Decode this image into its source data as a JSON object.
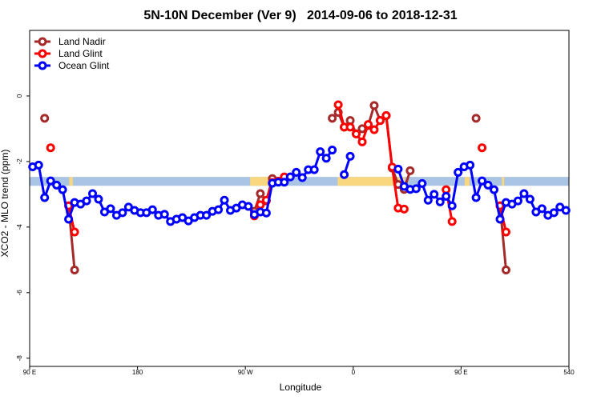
{
  "chart_data": {
    "type": "line",
    "title": "5N-10N December (Ver 9)   2014-09-06 to 2018-12-31",
    "xlabel": "Longitude",
    "ylabel": "XCO2 - MLO trend (ppm)",
    "xlim": [
      90,
      540
    ],
    "xticks": [
      {
        "value": 90,
        "label": "90 E"
      },
      180,
      {
        "value": 270,
        "label": "90 W"
      },
      {
        "value": 360,
        "label": "0"
      },
      {
        "value": 450,
        "label": "90 E"
      },
      540
    ],
    "ylim": [
      -8.25,
      2
    ],
    "yticks": [
      0,
      -2,
      -4,
      -6,
      -8
    ],
    "legend": "top-left",
    "band": {
      "ymin": -2.74,
      "ymax": -2.47,
      "color": "#a9c4e4"
    },
    "land_patches": {
      "color": "#f9d77e",
      "ranges": [
        [
          123,
          126
        ],
        [
          274,
          290
        ],
        [
          347,
          403
        ],
        [
          453,
          457
        ],
        [
          484,
          486
        ]
      ]
    },
    "series": [
      {
        "name": "Land Nadir",
        "color": "#a52a2a",
        "x": [
          102.5,
          107.5,
          122.5,
          127.5,
          132.5,
          277.5,
          282.5,
          287.5,
          292.5,
          297.5,
          342.5,
          347.5,
          352.5,
          357.5,
          362.5,
          367.5,
          372.5,
          377.5,
          382.5,
          387.5,
          392.5,
          397.5,
          402.5,
          407.5,
          412.5,
          462.5,
          467.5,
          482.5,
          487.5
        ],
        "values": [
          -0.68,
          null,
          -3.35,
          -5.31,
          null,
          -3.52,
          -2.98,
          -3.2,
          -2.52,
          null,
          -0.68,
          -0.5,
          -0.95,
          -0.75,
          -1.15,
          -1.0,
          -0.9,
          -0.29,
          -0.75,
          -0.6,
          -2.2,
          -2.7,
          -2.85,
          -2.28,
          null,
          -0.68,
          null,
          -3.35,
          -5.31
        ]
      },
      {
        "name": "Land Glint",
        "color": "#ff0000",
        "x": [
          107.5,
          112.5,
          122.5,
          127.5,
          132.5,
          277.5,
          282.5,
          287.5,
          292.5,
          297.5,
          302.5,
          307.5,
          347.5,
          352.5,
          357.5,
          362.5,
          367.5,
          372.5,
          377.5,
          382.5,
          387.5,
          392.5,
          397.5,
          402.5,
          407.5,
          437.5,
          442.5,
          447.5,
          467.5,
          472.5,
          482.5,
          487.5
        ],
        "values": [
          -1.58,
          null,
          -3.35,
          -4.15,
          null,
          -3.66,
          -3.32,
          -3.18,
          -2.64,
          -2.6,
          -2.47,
          null,
          -0.27,
          -0.95,
          -0.95,
          -1.16,
          -1.4,
          -0.87,
          -1.03,
          -0.75,
          -0.6,
          -2.17,
          -3.42,
          -3.45,
          null,
          -2.86,
          -3.83,
          null,
          -1.58,
          null,
          -3.35,
          -4.15
        ]
      },
      {
        "name": "Ocean Glint",
        "color": "#0000ff",
        "x": [
          92.5,
          97.5,
          102.5,
          107.5,
          112.5,
          117.5,
          122.5,
          127.5,
          132.5,
          137.5,
          142.5,
          147.5,
          152.5,
          157.5,
          162.5,
          167.5,
          172.5,
          177.5,
          182.5,
          187.5,
          192.5,
          197.5,
          202.5,
          207.5,
          212.5,
          217.5,
          222.5,
          227.5,
          232.5,
          237.5,
          242.5,
          247.5,
          252.5,
          257.5,
          262.5,
          267.5,
          272.5,
          277.5,
          282.5,
          287.5,
          292.5,
          297.5,
          302.5,
          307.5,
          312.5,
          317.5,
          322.5,
          327.5,
          332.5,
          337.5,
          342.5,
          347.5,
          352.5,
          357.5,
          362.5,
          367.5,
          372.5,
          377.5,
          382.5,
          387.5,
          392.5,
          397.5,
          402.5,
          407.5,
          412.5,
          417.5,
          422.5,
          427.5,
          432.5,
          437.5,
          442.5,
          447.5,
          452.5,
          457.5,
          462.5,
          467.5,
          472.5,
          477.5,
          482.5,
          487.5,
          492.5,
          497.5,
          502.5,
          507.5,
          512.5,
          517.5,
          522.5,
          527.5,
          532.5,
          537.5
        ],
        "values": [
          -2.16,
          -2.11,
          -3.1,
          -2.59,
          -2.72,
          -2.86,
          -3.76,
          -3.25,
          -3.3,
          -3.2,
          -2.98,
          -3.15,
          -3.54,
          -3.44,
          -3.64,
          -3.56,
          -3.39,
          -3.49,
          -3.56,
          -3.56,
          -3.47,
          -3.64,
          -3.61,
          -3.83,
          -3.76,
          -3.71,
          -3.81,
          -3.71,
          -3.64,
          -3.64,
          -3.52,
          -3.47,
          -3.18,
          -3.49,
          -3.42,
          -3.32,
          -3.37,
          -3.62,
          -3.54,
          -3.57,
          -2.66,
          -2.63,
          -2.63,
          -2.47,
          -2.33,
          -2.49,
          -2.25,
          -2.25,
          -1.7,
          -1.9,
          -1.65,
          null,
          -2.4,
          -1.84,
          null,
          null,
          null,
          null,
          null,
          null,
          null,
          -2.23,
          -2.76,
          -2.85,
          -2.83,
          -2.67,
          -3.18,
          -3.0,
          -3.23,
          -3.06,
          -3.35,
          -2.33,
          -2.16,
          -2.11,
          -3.1,
          -2.59,
          -2.72,
          -2.86,
          -3.76,
          -3.25,
          -3.3,
          -3.2,
          -2.98,
          -3.15,
          -3.54,
          -3.44,
          -3.64,
          -3.56,
          -3.39,
          -3.49
        ]
      }
    ]
  }
}
